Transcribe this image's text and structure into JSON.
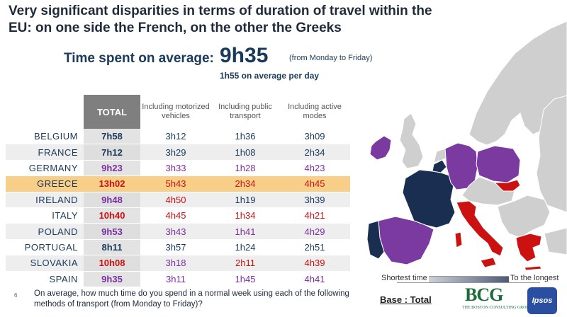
{
  "title": "Very significant disparities in terms of duration of travel within the EU: on one side the French, on the other the Greeks",
  "summary": {
    "label": "Time spent on average:",
    "value": "9h35",
    "note": "(from Monday to Friday)",
    "per_day": "1h55 on average per day"
  },
  "table": {
    "headers": [
      "TOTAL",
      "Including motorized vehicles",
      "Including public transport",
      "Including active modes"
    ],
    "rows": [
      {
        "country": "BELGIUM",
        "total": "7h58",
        "motorized": "3h12",
        "public": "1h36",
        "active": "3h09"
      },
      {
        "country": "FRANCE",
        "total": "7h12",
        "motorized": "3h29",
        "public": "1h08",
        "active": "2h34"
      },
      {
        "country": "GERMANY",
        "total": "9h23",
        "motorized": "3h33",
        "public": "1h28",
        "active": "4h23"
      },
      {
        "country": "GREECE",
        "total": "13h02",
        "motorized": "5h43",
        "public": "2h34",
        "active": "4h45"
      },
      {
        "country": "IRELAND",
        "total": "9h48",
        "motorized": "4h50",
        "public": "1h19",
        "active": "3h39"
      },
      {
        "country": "ITALY",
        "total": "10h40",
        "motorized": "4h45",
        "public": "1h34",
        "active": "4h21"
      },
      {
        "country": "POLAND",
        "total": "9h53",
        "motorized": "3h43",
        "public": "1h41",
        "active": "4h29"
      },
      {
        "country": "PORTUGAL",
        "total": "8h11",
        "motorized": "3h57",
        "public": "1h24",
        "active": "2h51"
      },
      {
        "country": "SLOVAKIA",
        "total": "10h08",
        "motorized": "3h18",
        "public": "2h11",
        "active": "4h39"
      },
      {
        "country": "SPAIN",
        "total": "9h35",
        "motorized": "3h11",
        "public": "1h45",
        "active": "4h41"
      }
    ]
  },
  "legend": {
    "left": "Shortest time",
    "right": "To the longest"
  },
  "base": "Base : Total",
  "logos": {
    "bcg": "BCG",
    "bcg_sub": "THE BOSTON CONSULTING GROUP",
    "ipsos": "Ipsos"
  },
  "page_number": "6",
  "question": "On average, how much time do you spend in a normal week using each of the following methods of transport (from Monday to Friday)?",
  "colors": {
    "short": "#1a2e52",
    "mid": "#7a3aa0",
    "long": "#cc1111",
    "highlight": "#f7cf88",
    "other_land": "#cfcfcf",
    "sea": "#ffffff"
  }
}
